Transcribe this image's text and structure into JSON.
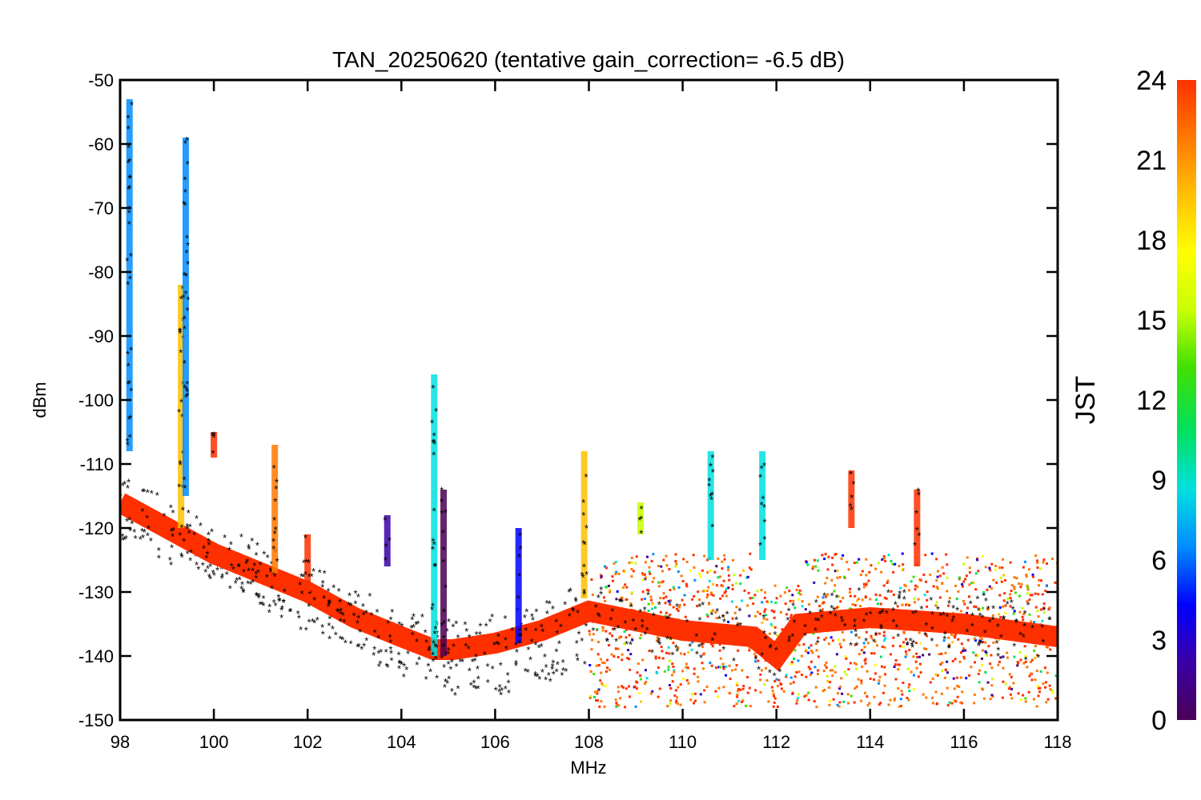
{
  "chart_data": {
    "type": "scatter",
    "title": "TAN_20250620 (tentative gain_correction= -6.5 dB)",
    "xlabel": "MHz",
    "ylabel": "dBm",
    "xlim": [
      98,
      118
    ],
    "ylim": [
      -150,
      -50
    ],
    "xticks": [
      "98",
      "100",
      "102",
      "104",
      "106",
      "108",
      "110",
      "112",
      "114",
      "116",
      "118"
    ],
    "yticks": [
      "-50",
      "-60",
      "-70",
      "-80",
      "-90",
      "-100",
      "-110",
      "-120",
      "-130",
      "-140",
      "-150"
    ],
    "grid": false,
    "colorbar": {
      "label": "JST",
      "range": [
        0,
        24
      ],
      "ticks": [
        "0",
        "3",
        "6",
        "9",
        "12",
        "15",
        "18",
        "21",
        "24"
      ],
      "colors": [
        "#4b0055",
        "#3a00a8",
        "#0000ff",
        "#008cff",
        "#00e0e0",
        "#00e060",
        "#40e000",
        "#c8ff00",
        "#ffff00",
        "#ffc000",
        "#ff7800",
        "#ff3000"
      ]
    },
    "baseline": {
      "description": "noise floor (dominant, JST ~23)",
      "x": [
        98,
        99,
        100,
        101,
        102,
        103,
        104,
        104.7,
        105.1,
        106,
        107,
        108,
        110,
        111.5,
        112,
        112.5,
        114,
        116,
        118
      ],
      "y": [
        -116,
        -120,
        -124,
        -127,
        -130,
        -134,
        -137,
        -139,
        -139,
        -138,
        -136,
        -133,
        -136,
        -137,
        -140,
        -135,
        -134,
        -135,
        -137
      ]
    },
    "low_trace": {
      "description": "lower-floor trace (JST ~19)",
      "x": [
        98,
        100,
        102,
        104,
        104.8,
        105.2,
        106,
        107,
        108
      ],
      "y": [
        -121,
        -127,
        -135,
        -142,
        -144,
        -145,
        -145,
        -143,
        -141
      ]
    },
    "band_108_118": {
      "description": "dense scatter band above 108 MHz",
      "x_range": [
        108,
        118
      ],
      "y_top": -124,
      "y_bottom": -148
    },
    "spikes": [
      {
        "x": 98.2,
        "ymin": -108,
        "ymax": -53,
        "jst": 7.5
      },
      {
        "x": 99.3,
        "ymin": -120,
        "ymax": -82,
        "jst": 20
      },
      {
        "x": 99.4,
        "ymin": -115,
        "ymax": -59,
        "jst": 7
      },
      {
        "x": 100,
        "ymin": -109,
        "ymax": -105,
        "jst": 23
      },
      {
        "x": 101.3,
        "ymin": -127,
        "ymax": -107,
        "jst": 21
      },
      {
        "x": 102,
        "ymin": -130,
        "ymax": -121,
        "jst": 23
      },
      {
        "x": 103.7,
        "ymin": -126,
        "ymax": -118,
        "jst": 3
      },
      {
        "x": 104.7,
        "ymin": -140,
        "ymax": -96,
        "jst": 9
      },
      {
        "x": 104.9,
        "ymin": -140,
        "ymax": -114,
        "jst": 1
      },
      {
        "x": 106.5,
        "ymin": -138,
        "ymax": -120,
        "jst": 4
      },
      {
        "x": 107.9,
        "ymin": -131,
        "ymax": -108,
        "jst": 20
      },
      {
        "x": 109.1,
        "ymin": -121,
        "ymax": -116,
        "jst": 15
      },
      {
        "x": 110.6,
        "ymin": -125,
        "ymax": -108,
        "jst": 8
      },
      {
        "x": 111.7,
        "ymin": -125,
        "ymax": -108,
        "jst": 8
      },
      {
        "x": 113.6,
        "ymin": -120,
        "ymax": -111,
        "jst": 23
      },
      {
        "x": 115,
        "ymin": -126,
        "ymax": -114,
        "jst": 23
      }
    ]
  }
}
